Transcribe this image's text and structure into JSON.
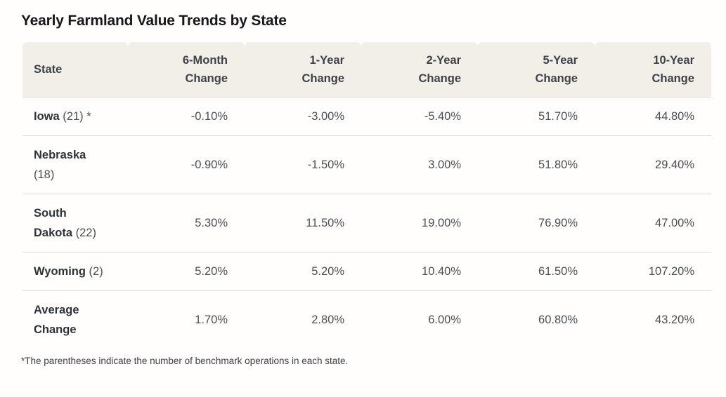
{
  "title": "Yearly Farmland Value Trends by State",
  "table": {
    "columns": [
      {
        "id": "state",
        "label": "State"
      },
      {
        "id": "6-month",
        "label": "6-Month\nChange"
      },
      {
        "id": "1-year",
        "label": "1-Year\nChange"
      },
      {
        "id": "2-year",
        "label": "2-Year\nChange"
      },
      {
        "id": "5-year",
        "label": "5-Year\nChange"
      },
      {
        "id": "10-year",
        "label": "10-Year\nChange"
      }
    ],
    "rows": [
      {
        "id": "iowa",
        "state": "Iowa",
        "note": "(21) *",
        "values": [
          "-0.10%",
          "-3.00%",
          "-5.40%",
          "51.70%",
          "44.80%"
        ]
      },
      {
        "id": "nebraska",
        "state": "Nebraska",
        "note": "(18)",
        "values": [
          "-0.90%",
          "-1.50%",
          "3.00%",
          "51.80%",
          "29.40%"
        ]
      },
      {
        "id": "south-dakota",
        "state": "South Dakota",
        "note": "(22)",
        "values": [
          "5.30%",
          "11.50%",
          "19.00%",
          "76.90%",
          "47.00%"
        ]
      },
      {
        "id": "wyoming",
        "state": "Wyoming",
        "note": "(2)",
        "values": [
          "5.20%",
          "5.20%",
          "10.40%",
          "61.50%",
          "107.20%"
        ]
      },
      {
        "id": "average",
        "state": "Average Change",
        "note": "",
        "values": [
          "1.70%",
          "2.80%",
          "6.00%",
          "60.80%",
          "43.20%"
        ]
      }
    ]
  },
  "footnote": "*The parentheses indicate the number of benchmark operations in each state.",
  "chart_data": {
    "type": "table",
    "title": "Yearly Farmland Value Trends by State",
    "columns": [
      "State",
      "6-Month Change",
      "1-Year Change",
      "2-Year Change",
      "5-Year Change",
      "10-Year Change"
    ],
    "rows": [
      {
        "state": "Iowa",
        "benchmark_operations": 21,
        "values_pct": [
          -0.1,
          -3.0,
          -5.4,
          51.7,
          44.8
        ]
      },
      {
        "state": "Nebraska",
        "benchmark_operations": 18,
        "values_pct": [
          -0.9,
          -1.5,
          3.0,
          51.8,
          29.4
        ]
      },
      {
        "state": "South Dakota",
        "benchmark_operations": 22,
        "values_pct": [
          5.3,
          11.5,
          19.0,
          76.9,
          47.0
        ]
      },
      {
        "state": "Wyoming",
        "benchmark_operations": 2,
        "values_pct": [
          5.2,
          5.2,
          10.4,
          61.5,
          107.2
        ]
      },
      {
        "state": "Average Change",
        "benchmark_operations": null,
        "values_pct": [
          1.7,
          2.8,
          6.0,
          60.8,
          43.2
        ]
      }
    ],
    "footnote": "*The parentheses indicate the number of benchmark operations in each state."
  },
  "colors": {
    "page_bg": "#fffefc",
    "header_bg": "#f2efe9",
    "divider": "#dbd8d4",
    "title_text": "#17191c",
    "header_text": "#3e4248",
    "body_text": "#4b4f55",
    "state_text": "#2f3338",
    "footnote_text": "#3d4147"
  }
}
